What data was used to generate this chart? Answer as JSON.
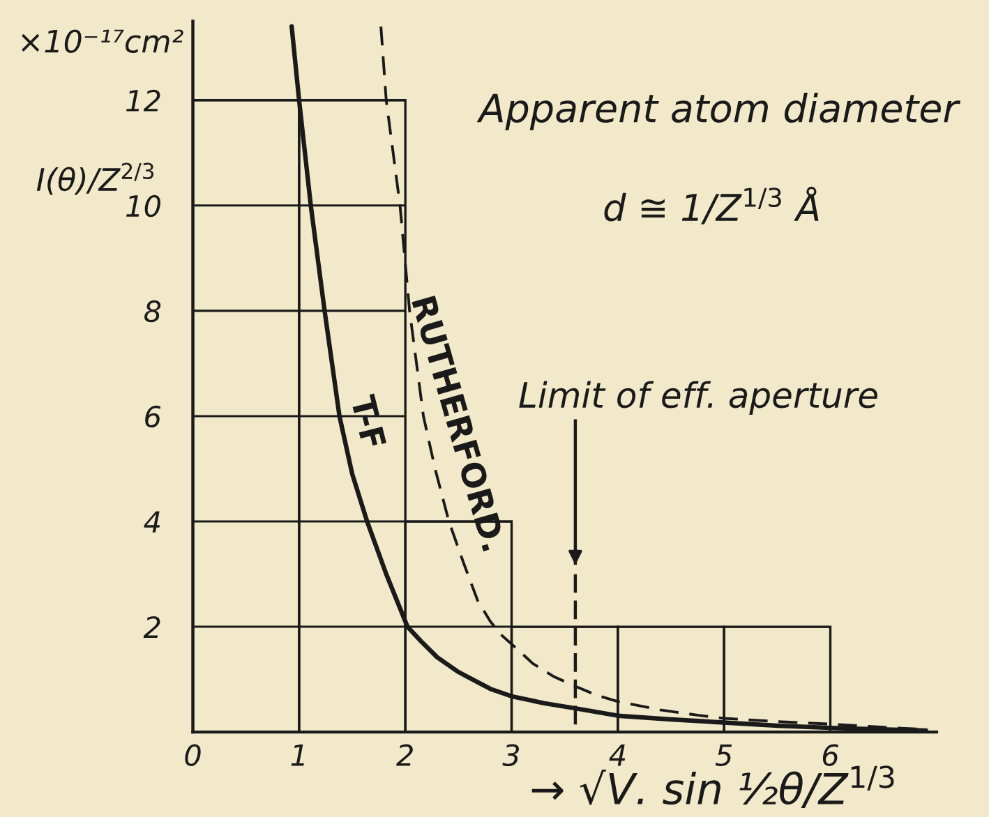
{
  "chart_data": {
    "type": "line",
    "ylabel": "I(θ)/Z$^{2/3}$",
    "xlabel": "→ √V. sin ½θ/Z$^{1/3}$",
    "xlim": [
      0,
      7
    ],
    "ylim": [
      0,
      13.5
    ],
    "xticks": [
      0,
      1,
      2,
      3,
      4,
      5,
      6
    ],
    "yticks": [
      2,
      4,
      6,
      8,
      10,
      12
    ],
    "grid": "y",
    "series": [
      {
        "type": "histogram",
        "color": "#1a1a1a",
        "bins": [
          0,
          1,
          2,
          3,
          4,
          5,
          6
        ],
        "values": [
          12,
          12,
          4,
          2,
          2,
          2
        ]
      },
      {
        "name": "T-F",
        "color": "#1a1a1a",
        "line_style": "solid",
        "x": [
          0.93,
          1.0,
          1.11,
          1.24,
          1.38,
          1.5,
          1.64,
          1.82,
          2.02,
          2.15,
          2.3,
          2.5,
          2.65,
          2.8,
          3.0,
          3.3,
          3.6,
          4.0,
          4.5,
          5.0,
          5.5,
          6.0,
          6.5,
          6.9
        ],
        "values": [
          13.4,
          12.0,
          10.0,
          8.0,
          6.0,
          4.9,
          4.0,
          3.0,
          2.0,
          1.72,
          1.42,
          1.14,
          0.98,
          0.82,
          0.68,
          0.55,
          0.45,
          0.31,
          0.24,
          0.18,
          0.12,
          0.08,
          0.05,
          0.03
        ]
      },
      {
        "name": "RUTHERFORD.",
        "color": "#1a1a1a",
        "line_style": "dashed",
        "x": [
          1.77,
          1.82,
          1.95,
          2.04,
          2.17,
          2.28,
          2.41,
          2.55,
          2.68,
          2.8,
          2.9,
          3.05,
          3.2,
          3.4,
          3.6,
          3.8,
          4.0,
          4.4,
          4.75,
          5.0,
          5.5,
          6.0,
          6.5,
          6.9
        ],
        "values": [
          13.4,
          12.0,
          10.0,
          8.0,
          6.0,
          5.0,
          4.0,
          3.2,
          2.5,
          2.1,
          1.85,
          1.58,
          1.3,
          1.05,
          0.87,
          0.7,
          0.58,
          0.42,
          0.32,
          0.26,
          0.2,
          0.15,
          0.09,
          0.05
        ]
      }
    ],
    "ref_lines": [
      {
        "axis": "x",
        "value": 3.6,
        "label": "Limit of eff. aperture",
        "line_style": "dashed",
        "color": "#1a1a1a"
      }
    ],
    "annotations": [
      "×10⁻¹⁷cm²",
      "Apparent atom diameter",
      "d ≅ 1/Z$^{1/3}$ Å"
    ]
  }
}
